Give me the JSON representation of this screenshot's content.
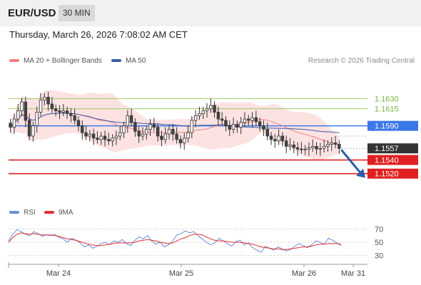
{
  "header": {
    "symbol": "EUR/USD",
    "timeframe": "30 MIN",
    "timestamp": "Thursday, March 26, 2026 7:08:02 AM CET"
  },
  "legend": {
    "ma20_bb": "MA 20 + Bollinger Bands",
    "ma50": "MA 50",
    "rsi": "RSI",
    "rsi_ma": "9MA"
  },
  "credit": "Research © 2026 Trading Central",
  "colors": {
    "ma20": "#f08080",
    "bollinger_fill": "#fde2e2",
    "ma50": "#3a5ca8",
    "resistance": "#9ccc65",
    "pivot": "#3b78e7",
    "support": "#e02020",
    "price_badge": "#333333",
    "arrow": "#2a5ea8",
    "rsi": "#6a8fd8",
    "rsi_ma": "#e03030",
    "candle_up": "#ffffff",
    "candle_down": "#444444"
  },
  "chart_data": {
    "type": "candlestick",
    "symbol": "EUR/USD",
    "interval": "30 MIN",
    "ylim": [
      1.148,
      1.167
    ],
    "x_tick_labels": [
      "Mar 24",
      "Mar 25",
      "Mar 26",
      "Mar 31"
    ],
    "last_price": 1.1557,
    "levels": [
      {
        "label": "1.1630",
        "value": 1.163,
        "kind": "resistance"
      },
      {
        "label": "1.1615",
        "value": 1.1615,
        "kind": "resistance"
      },
      {
        "label": "1.1590",
        "value": 1.159,
        "kind": "pivot"
      },
      {
        "label": "1.1540",
        "value": 1.154,
        "kind": "support"
      },
      {
        "label": "1.1520",
        "value": 1.152,
        "kind": "support"
      }
    ],
    "forecast": {
      "from": 1.1557,
      "to": 1.152,
      "direction": "down"
    },
    "close_series": [
      1.1588,
      1.16,
      1.1612,
      1.1625,
      1.1598,
      1.1575,
      1.159,
      1.161,
      1.1628,
      1.1632,
      1.1622,
      1.1615,
      1.1612,
      1.161,
      1.1612,
      1.1608,
      1.1605,
      1.1598,
      1.159,
      1.158,
      1.1575,
      1.1578,
      1.1572,
      1.157,
      1.1575,
      1.157,
      1.1568,
      1.1572,
      1.1575,
      1.158,
      1.159,
      1.1605,
      1.1595,
      1.1582,
      1.1575,
      1.1578,
      1.1585,
      1.1592,
      1.1588,
      1.1575,
      1.157,
      1.1578,
      1.1585,
      1.1578,
      1.157,
      1.1565,
      1.1572,
      1.158,
      1.1598,
      1.1605,
      1.1608,
      1.1612,
      1.1615,
      1.162,
      1.161,
      1.16,
      1.1598,
      1.159,
      1.1585,
      1.1592,
      1.1588,
      1.1595,
      1.16,
      1.1598,
      1.1602,
      1.1596,
      1.159,
      1.1585,
      1.1575,
      1.157,
      1.1568,
      1.1575,
      1.1568,
      1.156,
      1.1562,
      1.1558,
      1.1556,
      1.1555,
      1.1556,
      1.1558,
      1.156,
      1.1556,
      1.1557,
      1.156,
      1.1563,
      1.1565,
      1.1563,
      1.1557
    ],
    "rsi": {
      "levels": [
        70,
        50,
        30
      ],
      "ylim": [
        20,
        80
      ],
      "rsi_series": [
        52,
        62,
        69,
        66,
        62,
        60,
        66,
        63,
        59,
        61,
        60,
        62,
        57,
        55,
        50,
        56,
        53,
        49,
        43,
        46,
        41,
        44,
        48,
        50,
        46,
        52,
        50,
        54,
        48,
        45,
        53,
        58,
        55,
        60,
        52,
        47,
        50,
        43,
        46,
        52,
        61,
        63,
        67,
        64,
        66,
        60,
        55,
        50,
        46,
        49,
        56,
        52,
        48,
        44,
        51,
        53,
        46,
        49,
        42,
        38,
        35,
        44,
        41,
        38,
        43,
        40,
        37,
        39,
        44,
        48,
        45,
        42,
        46,
        52,
        50,
        47,
        56,
        53,
        49,
        45
      ],
      "ma_series": [
        50,
        57,
        62,
        64,
        63,
        62,
        63,
        62,
        61,
        61,
        61,
        60,
        59,
        57,
        55,
        54,
        53,
        51,
        49,
        47,
        46,
        45,
        45,
        46,
        47,
        48,
        49,
        49,
        49,
        49,
        50,
        52,
        53,
        54,
        53,
        52,
        50,
        49,
        48,
        49,
        52,
        55,
        57,
        60,
        62,
        62,
        61,
        58,
        55,
        53,
        52,
        52,
        51,
        50,
        50,
        50,
        49,
        48,
        47,
        45,
        43,
        42,
        41,
        40,
        40,
        39,
        39,
        40,
        41,
        42,
        43,
        43,
        44,
        46,
        47,
        47,
        48,
        48,
        48,
        47
      ]
    }
  }
}
